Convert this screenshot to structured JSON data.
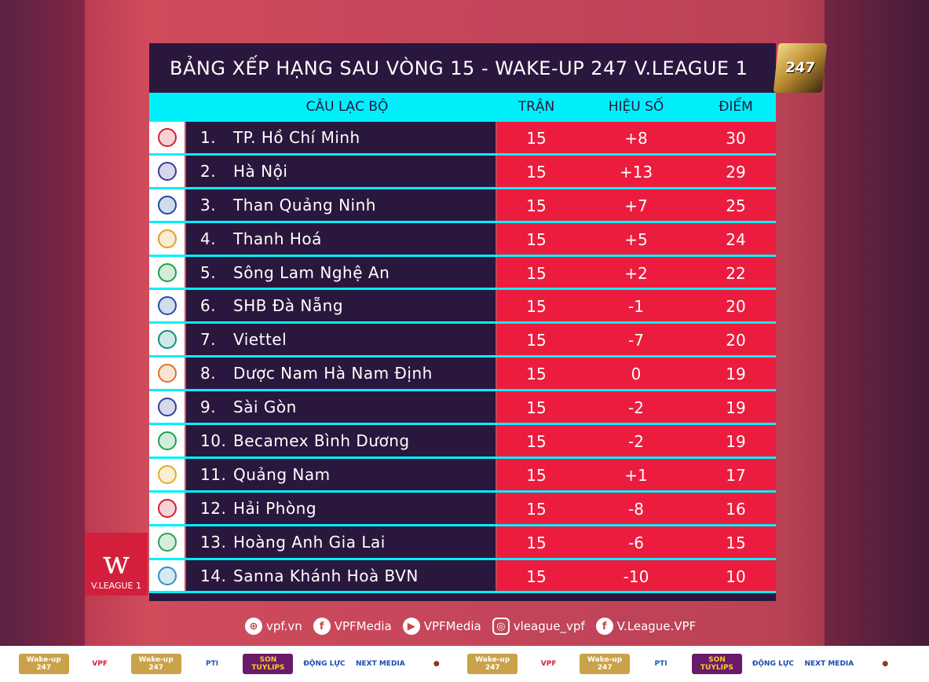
{
  "title": "BẢNG XẾP HẠNG SAU VÒNG 15 - WAKE-UP 247 V.LEAGUE 1",
  "brand_logo": "247",
  "headers": {
    "club": "CÂU LẠC BỘ",
    "played": "TRẬN",
    "diff": "HIỆU SỐ",
    "points": "ĐIỂM"
  },
  "colors": {
    "dark": "#2a173d",
    "cyan": "#00f0fb",
    "red": "#ec1c3f"
  },
  "rows": [
    {
      "rank": "1.",
      "club": "TP. Hồ Chí Minh",
      "played": "15",
      "diff": "+8",
      "points": "30",
      "logo_color": "#d42030"
    },
    {
      "rank": "2.",
      "club": "Hà Nội",
      "played": "15",
      "diff": "+13",
      "points": "29",
      "logo_color": "#3a3aa0"
    },
    {
      "rank": "3.",
      "club": "Than Quảng Ninh",
      "played": "15",
      "diff": "+7",
      "points": "25",
      "logo_color": "#1a4aa0"
    },
    {
      "rank": "4.",
      "club": "Thanh Hoá",
      "played": "15",
      "diff": "+5",
      "points": "24",
      "logo_color": "#e0a020"
    },
    {
      "rank": "5.",
      "club": "Sông Lam Nghệ An",
      "played": "15",
      "diff": "+2",
      "points": "22",
      "logo_color": "#20a040"
    },
    {
      "rank": "6.",
      "club": "SHB Đà Nẵng",
      "played": "15",
      "diff": "-1",
      "points": "20",
      "logo_color": "#2050a0"
    },
    {
      "rank": "7.",
      "club": "Viettel",
      "played": "15",
      "diff": "-7",
      "points": "20",
      "logo_color": "#109080"
    },
    {
      "rank": "8.",
      "club": "Dược Nam Hà Nam Định",
      "played": "15",
      "diff": "0",
      "points": "19",
      "logo_color": "#e07030"
    },
    {
      "rank": "9.",
      "club": "Sài Gòn",
      "played": "15",
      "diff": "-2",
      "points": "19",
      "logo_color": "#3040a0"
    },
    {
      "rank": "10.",
      "club": "Becamex Bình Dương",
      "played": "15",
      "diff": "-2",
      "points": "19",
      "logo_color": "#20a050"
    },
    {
      "rank": "11.",
      "club": "Quảng Nam",
      "played": "15",
      "diff": "+1",
      "points": "17",
      "logo_color": "#e0b020"
    },
    {
      "rank": "12.",
      "club": "Hải Phòng",
      "played": "15",
      "diff": "-8",
      "points": "16",
      "logo_color": "#d02030"
    },
    {
      "rank": "13.",
      "club": "Hoàng Anh Gia Lai",
      "played": "15",
      "diff": "-6",
      "points": "15",
      "logo_color": "#30a050"
    },
    {
      "rank": "14.",
      "club": "Sanna Khánh Hoà BVN",
      "played": "15",
      "diff": "-10",
      "points": "10",
      "logo_color": "#3090c0"
    }
  ],
  "league_logo": "V.LEAGUE 1",
  "social": [
    {
      "icon": "globe-icon",
      "glyph": "⊕",
      "label": "vpf.vn"
    },
    {
      "icon": "facebook-icon",
      "glyph": "f",
      "label": "VPFMedia"
    },
    {
      "icon": "youtube-icon",
      "glyph": "▶",
      "label": "VPFMedia"
    },
    {
      "icon": "instagram-icon",
      "glyph": "◎",
      "label": "vleague_vpf"
    },
    {
      "icon": "facebook-icon",
      "glyph": "f",
      "label": "V.League.VPF"
    }
  ],
  "sponsors": [
    {
      "label": "Wake-up 247",
      "bg": "#c9a24a",
      "fg": "#fff"
    },
    {
      "label": "VPF",
      "bg": "#fff",
      "fg": "#d41f3c"
    },
    {
      "label": "Wake-up 247",
      "bg": "#c9a24a",
      "fg": "#fff"
    },
    {
      "label": "PTI",
      "bg": "#fff",
      "fg": "#1a5ab0"
    },
    {
      "label": "SON TUYLIPS",
      "bg": "#6a1a6a",
      "fg": "#f5d020"
    },
    {
      "label": "ĐỘNG LỰC",
      "bg": "#fff",
      "fg": "#1a4ab0"
    },
    {
      "label": "NEXT MEDIA",
      "bg": "#fff",
      "fg": "#1a4ab0"
    },
    {
      "label": "●",
      "bg": "#fff",
      "fg": "#8a3a20"
    },
    {
      "label": "Wake-up 247",
      "bg": "#c9a24a",
      "fg": "#fff"
    },
    {
      "label": "VPF",
      "bg": "#fff",
      "fg": "#d41f3c"
    },
    {
      "label": "Wake-up 247",
      "bg": "#c9a24a",
      "fg": "#fff"
    },
    {
      "label": "PTI",
      "bg": "#fff",
      "fg": "#1a5ab0"
    },
    {
      "label": "SON TUYLIPS",
      "bg": "#6a1a6a",
      "fg": "#f5d020"
    },
    {
      "label": "ĐỘNG LỰC",
      "bg": "#fff",
      "fg": "#1a4ab0"
    },
    {
      "label": "NEXT MEDIA",
      "bg": "#fff",
      "fg": "#1a4ab0"
    },
    {
      "label": "●",
      "bg": "#fff",
      "fg": "#8a3a20"
    }
  ]
}
